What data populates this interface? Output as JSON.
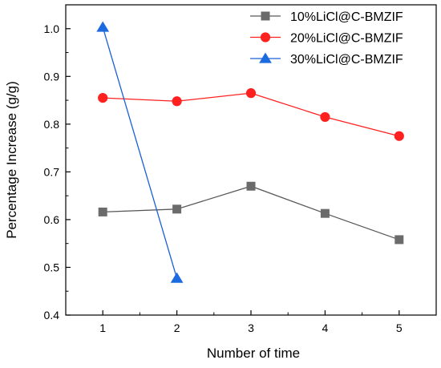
{
  "chart_data": {
    "type": "line",
    "title": "",
    "xlabel": "Number of time",
    "ylabel": "Percentage Increase (g/g)",
    "x": [
      1,
      2,
      3,
      4,
      5
    ],
    "xlim": [
      0.5,
      5.5
    ],
    "ylim": [
      0.4,
      1.05
    ],
    "xticks": [
      "1",
      "2",
      "3",
      "4",
      "5"
    ],
    "yticks": [
      "0.4",
      "0.5",
      "0.6",
      "0.7",
      "0.8",
      "0.9",
      "1.0"
    ],
    "grid": false,
    "legend_position": "top-right",
    "series": [
      {
        "name": "10%LiCl@C-BMZIF",
        "marker": "square",
        "color": "#595959",
        "marker_color": "#6b6b6b",
        "x": [
          1,
          2,
          3,
          4,
          5
        ],
        "values": [
          0.616,
          0.622,
          0.67,
          0.613,
          0.558
        ]
      },
      {
        "name": "20%LiCl@C-BMZIF",
        "marker": "circle",
        "color": "#ff2020",
        "marker_color": "#ff2020",
        "x": [
          1,
          2,
          3,
          4,
          5
        ],
        "values": [
          0.855,
          0.848,
          0.865,
          0.815,
          0.775
        ]
      },
      {
        "name": "30%LiCl@C-BMZIF",
        "marker": "triangle",
        "color": "#1a5fd6",
        "marker_color": "#1c6ae0",
        "x": [
          1,
          2
        ],
        "values": [
          1.003,
          0.477
        ]
      }
    ]
  }
}
